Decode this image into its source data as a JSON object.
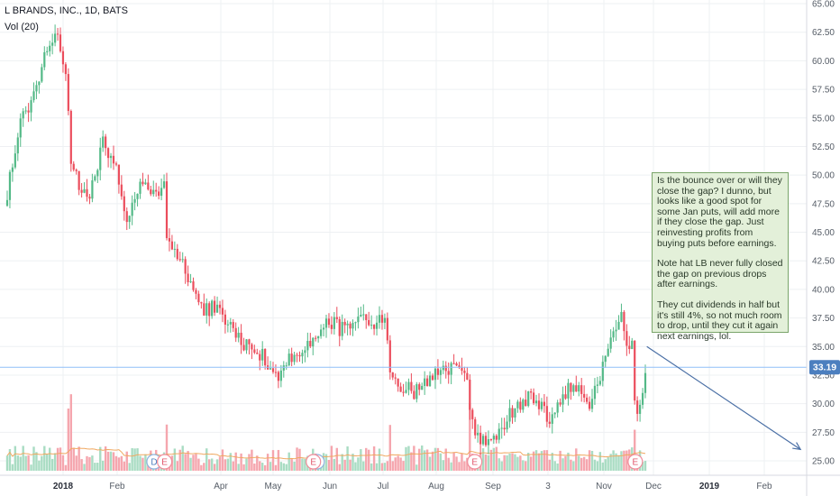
{
  "header": {
    "title": "L BRANDS, INC., 1D, BATS",
    "volume_label": "Vol (20)"
  },
  "price_tag": "33.19",
  "note": {
    "paragraphs": [
      "Is the bounce over or will they close the gap?  I dunno, but looks like a good spot for some Jan puts, will add more if they close the gap.   Just reinvesting profits from buying puts before earnings.",
      "Note hat LB never fully closed the gap on previous drops after earnings.",
      "They cut dividends in half but it's still 4%, so not much room to drop, until they cut it again next earnings, lol."
    ]
  },
  "colors": {
    "up": "#53b987",
    "down": "#eb4d5c",
    "vol_up": "#a9dcc3",
    "vol_down": "#f5a6ae",
    "price_line": "#90bff9",
    "price_tag_bg": "#4c7fbf",
    "arrow": "#4a6fa5",
    "vol_ma": "#f0a860",
    "grid": "#eef0f3"
  },
  "chart_data": {
    "type": "candlestick",
    "symbol": "L BRANDS, INC.",
    "interval": "1D",
    "exchange": "BATS",
    "y_range": [
      25,
      65
    ],
    "y_ticks": [
      "25.00",
      "27.50",
      "30.00",
      "32.50",
      "35.00",
      "37.50",
      "40.00",
      "42.50",
      "45.00",
      "47.50",
      "50.00",
      "52.50",
      "55.00",
      "57.50",
      "60.00",
      "62.50",
      "65.00"
    ],
    "x_ticks": [
      {
        "label": "2018",
        "bold": true
      },
      {
        "label": "Feb"
      },
      {
        "label": "Apr"
      },
      {
        "label": "May"
      },
      {
        "label": "Jun"
      },
      {
        "label": "Jul"
      },
      {
        "label": "Aug"
      },
      {
        "label": "Sep"
      },
      {
        "label": "3"
      },
      {
        "label": "Nov"
      },
      {
        "label": "Dec"
      },
      {
        "label": "2019",
        "bold": true
      },
      {
        "label": "Feb"
      }
    ],
    "last_price": 33.19,
    "price_path": [
      [
        "2017-12-01",
        48.5
      ],
      [
        "2017-12-08",
        54.5
      ],
      [
        "2017-12-15",
        56.5
      ],
      [
        "2017-12-22",
        61.0
      ],
      [
        "2017-12-29",
        62.5
      ],
      [
        "2018-01-03",
        58.5
      ],
      [
        "2018-01-05",
        51.5
      ],
      [
        "2018-01-10",
        49.0
      ],
      [
        "2018-01-17",
        48.5
      ],
      [
        "2018-01-24",
        53.0
      ],
      [
        "2018-01-31",
        51.0
      ],
      [
        "2018-02-07",
        46.0
      ],
      [
        "2018-02-14",
        49.0
      ],
      [
        "2018-02-21",
        48.5
      ],
      [
        "2018-02-28",
        48.8
      ],
      [
        "2018-03-01",
        44.5
      ],
      [
        "2018-03-08",
        43.0
      ],
      [
        "2018-03-15",
        40.5
      ],
      [
        "2018-03-22",
        38.0
      ],
      [
        "2018-03-29",
        38.5
      ],
      [
        "2018-04-05",
        37.0
      ],
      [
        "2018-04-12",
        35.5
      ],
      [
        "2018-04-19",
        35.0
      ],
      [
        "2018-04-26",
        34.0
      ],
      [
        "2018-05-03",
        32.5
      ],
      [
        "2018-05-10",
        34.0
      ],
      [
        "2018-05-17",
        34.5
      ],
      [
        "2018-05-24",
        35.5
      ],
      [
        "2018-05-31",
        37.5
      ],
      [
        "2018-06-07",
        36.5
      ],
      [
        "2018-06-14",
        36.5
      ],
      [
        "2018-06-21",
        37.5
      ],
      [
        "2018-06-28",
        37.0
      ],
      [
        "2018-07-03",
        37.5
      ],
      [
        "2018-07-05",
        32.5
      ],
      [
        "2018-07-12",
        31.5
      ],
      [
        "2018-07-19",
        31.0
      ],
      [
        "2018-07-26",
        32.0
      ],
      [
        "2018-08-02",
        32.5
      ],
      [
        "2018-08-09",
        33.0
      ],
      [
        "2018-08-16",
        33.5
      ],
      [
        "2018-08-22",
        27.5
      ],
      [
        "2018-08-29",
        26.5
      ],
      [
        "2018-09-05",
        27.5
      ],
      [
        "2018-09-12",
        29.5
      ],
      [
        "2018-09-19",
        30.5
      ],
      [
        "2018-09-26",
        30.0
      ],
      [
        "2018-10-03",
        28.5
      ],
      [
        "2018-10-10",
        31.0
      ],
      [
        "2018-10-17",
        31.5
      ],
      [
        "2018-10-24",
        29.5
      ],
      [
        "2018-10-31",
        33.0
      ],
      [
        "2018-11-07",
        36.0
      ],
      [
        "2018-11-12",
        37.5
      ],
      [
        "2018-11-15",
        35.5
      ],
      [
        "2018-11-19",
        35.0
      ],
      [
        "2018-11-20",
        28.5
      ],
      [
        "2018-11-23",
        30.5
      ],
      [
        "2018-11-27",
        33.19
      ]
    ],
    "earnings_markers": [
      {
        "date": "2018-02-28",
        "label": "E"
      },
      {
        "date": "2018-05-23",
        "label": "E"
      },
      {
        "date": "2018-08-22",
        "label": "E"
      },
      {
        "date": "2018-11-20",
        "label": "E"
      }
    ],
    "dividend_markers": [
      {
        "date": "2018-02-22",
        "label": "D"
      },
      {
        "date": "2018-05-25",
        "label": "D"
      }
    ],
    "projection_arrow": {
      "from": [
        "2018-11-27",
        35.0
      ],
      "to": [
        "2019-02-28",
        26.0
      ]
    }
  }
}
